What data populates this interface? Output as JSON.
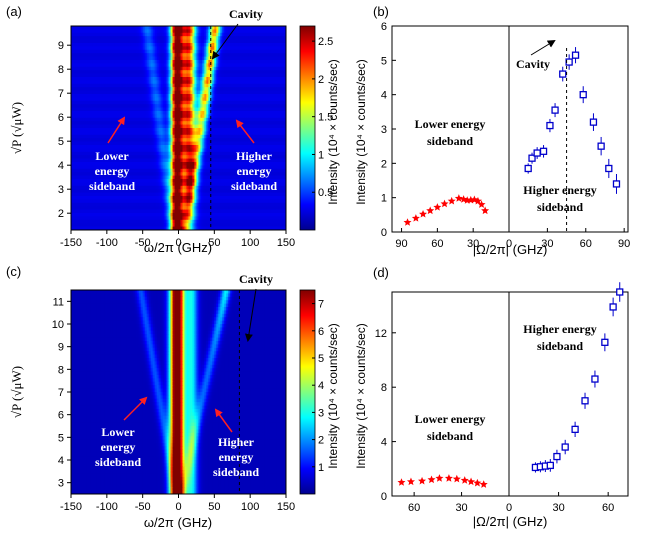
{
  "colors": {
    "heatmap_stops": [
      "#00008f",
      "#0000ff",
      "#0080ff",
      "#00ffff",
      "#80ff80",
      "#ffff00",
      "#ff8000",
      "#ff0000",
      "#800000"
    ],
    "lower_sideband": "#ff0000",
    "higher_sideband": "#0000cc",
    "annotation_arrow": "#ff2020",
    "cavity_arrow": "#000000"
  },
  "chart_data": [
    {
      "panel": "(a)",
      "type": "heatmap",
      "xlabel": "ω/2π (GHz)",
      "ylabel": "√P (√μW)",
      "xlim": [
        -150,
        150
      ],
      "ylim": [
        1.3,
        9.8
      ],
      "xticks": [
        "-150",
        "-100",
        "-50",
        "0",
        "50",
        "100",
        "150"
      ],
      "yticks": [
        "2",
        "3",
        "4",
        "5",
        "6",
        "7",
        "8",
        "9"
      ],
      "cavity_x": 45,
      "colorbar": {
        "label": "Intensity (10⁴ × counts/sec)",
        "min": 0,
        "max": 2.7,
        "ticks": [
          "0.5",
          "1",
          "1.5",
          "2",
          "2.5"
        ]
      },
      "annotations": {
        "cavity": "Cavity",
        "lower": [
          "Lower",
          "energy",
          "sideband"
        ],
        "higher": [
          "Higher",
          "energy",
          "sideband"
        ]
      }
    },
    {
      "panel": "(b)",
      "type": "scatter",
      "xlabel": "|Ω/2π| (GHz)",
      "ylabel": "Intensity (10⁴ × counts/sec)",
      "ylim": [
        0,
        6
      ],
      "yticks": [
        "0",
        "1",
        "2",
        "3",
        "4",
        "5",
        "6"
      ],
      "left_xticks": [
        "90",
        "60",
        "30"
      ],
      "right_xticks": [
        "0",
        "30",
        "60",
        "90"
      ],
      "cavity_x": 45,
      "series": [
        {
          "name": "Lower energy sideband",
          "marker": "filled-star",
          "x": [
            85,
            78,
            72,
            66,
            60,
            54,
            48,
            42,
            38,
            35,
            32,
            29,
            26,
            23,
            20
          ],
          "y": [
            0.28,
            0.4,
            0.52,
            0.62,
            0.72,
            0.82,
            0.9,
            0.98,
            0.95,
            0.92,
            0.93,
            0.94,
            0.9,
            0.8,
            0.62
          ]
        },
        {
          "name": "Higher energy sideband",
          "marker": "open-square",
          "x": [
            15,
            18,
            22,
            27,
            32,
            36,
            42,
            47,
            52,
            58,
            66,
            72,
            78,
            84
          ],
          "y": [
            1.85,
            2.15,
            2.3,
            2.35,
            3.1,
            3.55,
            4.6,
            4.95,
            5.15,
            4.0,
            3.2,
            2.5,
            1.85,
            1.4
          ]
        }
      ],
      "annotations": {
        "cavity": "Cavity",
        "lower": [
          "Lower energy",
          "sideband"
        ],
        "higher": [
          "Higher energy",
          "sideband"
        ]
      }
    },
    {
      "panel": "(c)",
      "type": "heatmap",
      "xlabel": "ω/2π (GHz)",
      "ylabel": "√P (√μW)",
      "xlim": [
        -150,
        150
      ],
      "ylim": [
        2.5,
        11.5
      ],
      "xticks": [
        "-150",
        "-100",
        "-50",
        "0",
        "50",
        "100",
        "150"
      ],
      "yticks": [
        "3",
        "4",
        "5",
        "6",
        "7",
        "8",
        "9",
        "10",
        "11"
      ],
      "cavity_x": 85,
      "colorbar": {
        "label": "Intensity (10⁴ × counts/sec)",
        "min": 0,
        "max": 7.5,
        "ticks": [
          "1",
          "2",
          "3",
          "4",
          "5",
          "6",
          "7"
        ]
      },
      "annotations": {
        "cavity": "Cavity",
        "lower": [
          "Lower",
          "energy",
          "sideband"
        ],
        "higher": [
          "Higher",
          "energy",
          "sideband"
        ]
      }
    },
    {
      "panel": "(d)",
      "type": "scatter",
      "xlabel": "|Ω/2π| (GHz)",
      "ylabel": "Intensity (10⁴ × counts/sec)",
      "ylim": [
        0,
        15
      ],
      "yticks": [
        "0",
        "4",
        "8",
        "12"
      ],
      "left_xticks": [
        "60",
        "30"
      ],
      "right_xticks": [
        "0",
        "30",
        "60"
      ],
      "series": [
        {
          "name": "Lower energy sideband",
          "marker": "filled-star",
          "x": [
            68,
            62,
            55,
            49,
            44,
            38,
            33,
            28,
            24,
            20,
            16
          ],
          "y": [
            1.0,
            1.05,
            1.1,
            1.2,
            1.3,
            1.3,
            1.25,
            1.15,
            1.05,
            0.95,
            0.85
          ]
        },
        {
          "name": "Higher energy sideband",
          "marker": "open-square",
          "x": [
            16,
            19,
            22,
            25,
            29,
            34,
            40,
            46,
            52,
            58,
            63,
            67
          ],
          "y": [
            2.1,
            2.15,
            2.2,
            2.25,
            2.9,
            3.6,
            4.9,
            7.0,
            8.6,
            11.3,
            13.9,
            15.0
          ]
        }
      ],
      "annotations": {
        "lower": [
          "Lower energy",
          "sideband"
        ],
        "higher": [
          "Higher energy",
          "sideband"
        ]
      }
    }
  ]
}
